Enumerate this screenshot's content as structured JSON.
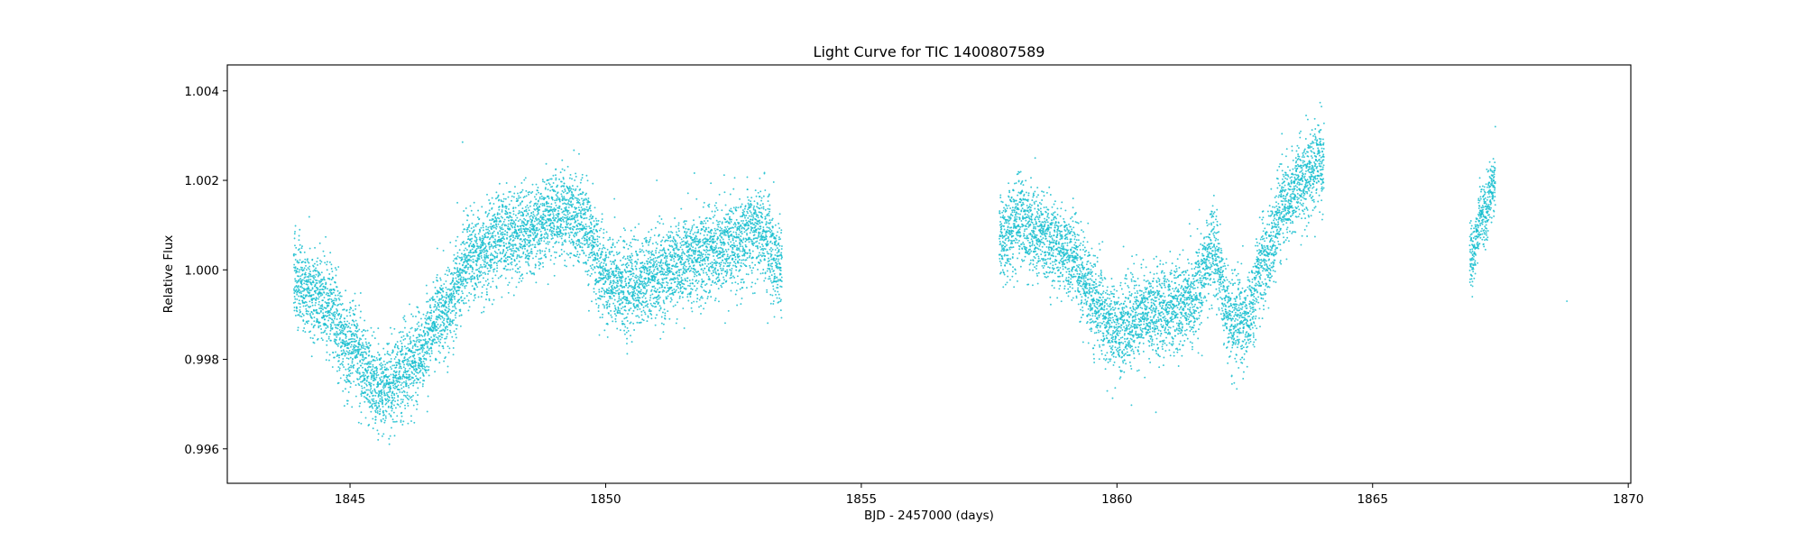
{
  "chart_data": {
    "type": "scatter",
    "title": "Light Curve for TIC 1400807589",
    "xlabel": "BJD - 2457000 (days)",
    "ylabel": "Relative Flux",
    "xlim": [
      1842.6,
      1870.05
    ],
    "ylim": [
      0.99523,
      1.00458
    ],
    "xticks": [
      1845,
      1850,
      1855,
      1860,
      1865,
      1870
    ],
    "xtick_labels": [
      "1845",
      "1850",
      "1855",
      "1860",
      "1865",
      "1870"
    ],
    "yticks": [
      0.996,
      0.998,
      1.0,
      1.002,
      1.004
    ],
    "ytick_labels": [
      "0.996",
      "0.998",
      "1.000",
      "1.002",
      "1.004"
    ],
    "grid": false,
    "marker_color": "#17becf",
    "series": [
      {
        "name": "Relative Flux",
        "segments": [
          {
            "x_start": 1843.9,
            "x_end": 1853.45,
            "step": 0.00139,
            "scatter": 0.0005,
            "trend_x": [
              1843.9,
              1844.5,
              1845.0,
              1845.6,
              1846.2,
              1846.8,
              1847.4,
              1848.0,
              1848.5,
              1849.0,
              1849.5,
              1850.0,
              1850.4,
              1850.9,
              1851.4,
              1852.0,
              1852.5,
              1853.0,
              1853.45
            ],
            "trend_y": [
              0.99975,
              0.99925,
              0.9983,
              0.99735,
              0.9978,
              0.99905,
              1.00025,
              1.00075,
              1.00085,
              1.00125,
              1.00115,
              0.99985,
              0.99955,
              0.9998,
              1.00015,
              1.00035,
              1.00055,
              1.0009,
              1.00005
            ]
          },
          {
            "x_start": 1857.7,
            "x_end": 1864.05,
            "step": 0.00139,
            "scatter": 0.0005,
            "trend_x": [
              1857.7,
              1858.1,
              1858.6,
              1859.1,
              1859.6,
              1860.0,
              1860.5,
              1861.0,
              1861.5,
              1861.9,
              1862.2,
              1862.5,
              1862.9,
              1863.3,
              1863.7,
              1864.05
            ],
            "trend_y": [
              1.0006,
              1.0011,
              1.0007,
              1.0003,
              0.99925,
              0.99865,
              0.99895,
              0.9991,
              0.9994,
              1.00045,
              0.99895,
              0.99885,
              1.00025,
              1.0015,
              1.0021,
              1.00235
            ]
          },
          {
            "x_start": 1866.9,
            "x_end": 1867.4,
            "step": 0.00139,
            "scatter": 0.00035,
            "trend_x": [
              1866.9,
              1867.15,
              1867.4
            ],
            "trend_y": [
              1.0003,
              1.0012,
              1.002
            ]
          }
        ],
        "outliers": [
          {
            "x": 1845.55,
            "y": 0.9962
          },
          {
            "x": 1847.1,
            "y": 1.0015
          },
          {
            "x": 1849.15,
            "y": 1.00245
          },
          {
            "x": 1851.0,
            "y": 1.002
          },
          {
            "x": 1853.3,
            "y": 0.99895
          },
          {
            "x": 1858.4,
            "y": 1.0025
          },
          {
            "x": 1862.25,
            "y": 0.99745
          },
          {
            "x": 1863.7,
            "y": 1.00345
          },
          {
            "x": 1864.0,
            "y": 1.00365
          },
          {
            "x": 1867.4,
            "y": 1.0032
          },
          {
            "x": 1866.95,
            "y": 0.9994
          },
          {
            "x": 1868.8,
            "y": 0.9993
          }
        ]
      }
    ]
  }
}
